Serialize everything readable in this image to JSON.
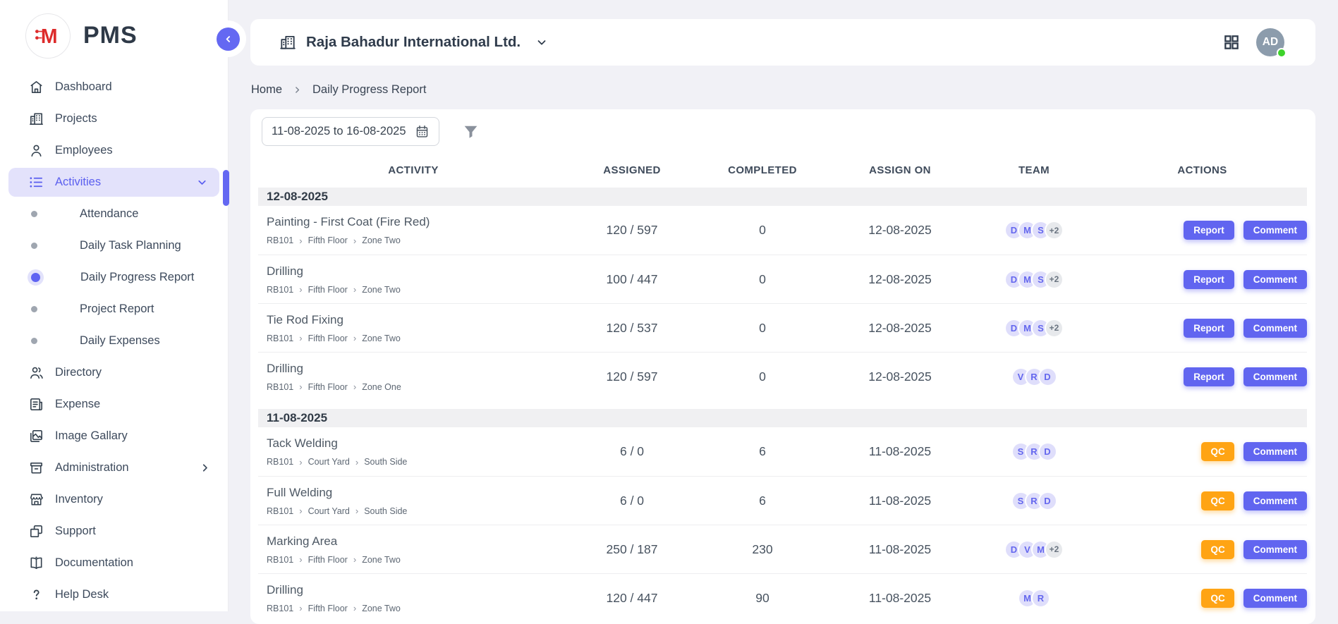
{
  "app": {
    "name": "PMS",
    "logo_letter": "M"
  },
  "sidebar": {
    "items": [
      {
        "label": "Dashboard",
        "icon": "home-icon"
      },
      {
        "label": "Projects",
        "icon": "building-icon"
      },
      {
        "label": "Employees",
        "icon": "person-icon"
      },
      {
        "label": "Activities",
        "icon": "list-icon",
        "active": true,
        "chevron": "down"
      },
      {
        "label": "Attendance",
        "sub": true
      },
      {
        "label": "Daily Task Planning",
        "sub": true
      },
      {
        "label": "Daily Progress Report",
        "sub": true,
        "active": true
      },
      {
        "label": "Project Report",
        "sub": true
      },
      {
        "label": "Daily Expenses",
        "sub": true
      },
      {
        "label": "Directory",
        "icon": "people-icon"
      },
      {
        "label": "Expense",
        "icon": "receipt-icon"
      },
      {
        "label": "Image Gallary",
        "icon": "image-icon"
      },
      {
        "label": "Administration",
        "icon": "archive-icon",
        "chevron": "right"
      },
      {
        "label": "Inventory",
        "icon": "store-icon"
      },
      {
        "label": "Support",
        "icon": "squares-icon"
      },
      {
        "label": "Documentation",
        "icon": "book-icon"
      },
      {
        "label": "Help Desk",
        "icon": "question-icon"
      }
    ]
  },
  "header": {
    "company": "Raja Bahadur International Ltd.",
    "company_icon": "building-icon",
    "apps_icon": "grid-icon",
    "avatar_initials": "AD",
    "avatar_status_color": "#3ED32B"
  },
  "breadcrumb": {
    "items": [
      "Home",
      "Daily Progress Report"
    ]
  },
  "filters": {
    "date_range": "11-08-2025 to 16-08-2025",
    "date_icon": "calendar-icon",
    "filter_icon": "funnel-icon"
  },
  "table": {
    "columns": [
      "ACTIVITY",
      "ASSIGNED",
      "COMPLETED",
      "ASSIGN ON",
      "TEAM",
      "ACTIONS"
    ],
    "groups": [
      {
        "date": "12-08-2025",
        "rows": [
          {
            "name": "Painting - First Coat (Fire Red)",
            "path": [
              "RB101",
              "Fifth Floor",
              "Zone Two"
            ],
            "assigned": "120 / 597",
            "completed": "0",
            "assign_on": "12-08-2025",
            "team": [
              "D",
              "M",
              "S"
            ],
            "team_extra": "+2",
            "actions": [
              {
                "label": "Report",
                "style": "purple"
              },
              {
                "label": "Comment",
                "style": "purple"
              }
            ]
          },
          {
            "name": "Drilling",
            "path": [
              "RB101",
              "Fifth Floor",
              "Zone Two"
            ],
            "assigned": "100 / 447",
            "completed": "0",
            "assign_on": "12-08-2025",
            "team": [
              "D",
              "M",
              "S"
            ],
            "team_extra": "+2",
            "actions": [
              {
                "label": "Report",
                "style": "purple"
              },
              {
                "label": "Comment",
                "style": "purple"
              }
            ]
          },
          {
            "name": "Tie Rod Fixing",
            "path": [
              "RB101",
              "Fifth Floor",
              "Zone Two"
            ],
            "assigned": "120 / 537",
            "completed": "0",
            "assign_on": "12-08-2025",
            "team": [
              "D",
              "M",
              "S"
            ],
            "team_extra": "+2",
            "actions": [
              {
                "label": "Report",
                "style": "purple"
              },
              {
                "label": "Comment",
                "style": "purple"
              }
            ]
          },
          {
            "name": "Drilling",
            "path": [
              "RB101",
              "Fifth Floor",
              "Zone One"
            ],
            "assigned": "120 / 597",
            "completed": "0",
            "assign_on": "12-08-2025",
            "team": [
              "V",
              "R",
              "D"
            ],
            "team_extra": "",
            "actions": [
              {
                "label": "Report",
                "style": "purple"
              },
              {
                "label": "Comment",
                "style": "purple"
              }
            ]
          }
        ]
      },
      {
        "date": "11-08-2025",
        "rows": [
          {
            "name": "Tack Welding",
            "path": [
              "RB101",
              "Court Yard",
              "South Side"
            ],
            "assigned": "6 / 0",
            "completed": "6",
            "assign_on": "11-08-2025",
            "team": [
              "S",
              "R",
              "D"
            ],
            "team_extra": "",
            "actions": [
              {
                "label": "QC",
                "style": "orange"
              },
              {
                "label": "Comment",
                "style": "purple"
              }
            ]
          },
          {
            "name": "Full Welding",
            "path": [
              "RB101",
              "Court Yard",
              "South Side"
            ],
            "assigned": "6 / 0",
            "completed": "6",
            "assign_on": "11-08-2025",
            "team": [
              "S",
              "R",
              "D"
            ],
            "team_extra": "",
            "actions": [
              {
                "label": "QC",
                "style": "orange"
              },
              {
                "label": "Comment",
                "style": "purple"
              }
            ]
          },
          {
            "name": "Marking Area",
            "path": [
              "RB101",
              "Fifth Floor",
              "Zone Two"
            ],
            "assigned": "250 / 187",
            "completed": "230",
            "assign_on": "11-08-2025",
            "team": [
              "D",
              "V",
              "M"
            ],
            "team_extra": "+2",
            "actions": [
              {
                "label": "QC",
                "style": "orange"
              },
              {
                "label": "Comment",
                "style": "purple"
              }
            ]
          },
          {
            "name": "Drilling",
            "path": [
              "RB101",
              "Fifth Floor",
              "Zone Two"
            ],
            "assigned": "120 / 447",
            "completed": "90",
            "assign_on": "11-08-2025",
            "team": [
              "M",
              "R"
            ],
            "team_extra": "",
            "actions": [
              {
                "label": "QC",
                "style": "orange"
              },
              {
                "label": "Comment",
                "style": "purple"
              }
            ]
          }
        ]
      }
    ]
  },
  "colors": {
    "accent_purple": "#6165F0",
    "active_pill_bg": "#E3E2FB",
    "avatar_chip_bg": "#DFDEFB",
    "avatar_chip_text": "#6467EE",
    "qc_orange": "#FFA414",
    "logo_red": "#DD2B2B",
    "online_green": "#3ED32B",
    "page_bg": "#F1F1F6",
    "group_band_bg": "#F0F0F2"
  }
}
